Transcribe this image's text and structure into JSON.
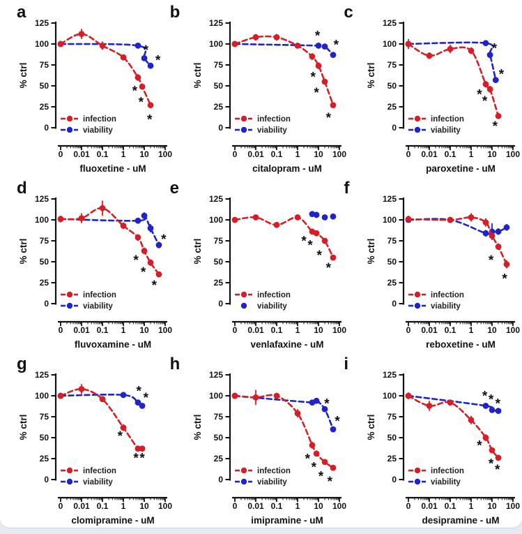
{
  "chart_data": {
    "type": "line",
    "description_layout": "3x3 grid of dose-response panels",
    "shared": {
      "ylabel": "% ctrl",
      "yticks": [
        0,
        25,
        50,
        75,
        100,
        125
      ],
      "ylim": [
        0,
        125
      ],
      "xticks": [
        "0",
        "0.01",
        "0.1",
        "1",
        "10",
        "100"
      ],
      "xscale": "log-with-zero",
      "legend": [
        "infection",
        "viability"
      ],
      "sig_marker": "*",
      "colors": {
        "infection": "#d51f26",
        "viability": "#1f24c8",
        "axis": "#111111",
        "significance": "#111111"
      }
    },
    "panels": [
      {
        "letter": "a",
        "xlabel": "fluoxetine - uM",
        "series": [
          {
            "name": "viability",
            "line": true,
            "points": [
              [
                0,
                100,
                2
              ],
              [
                5,
                98,
                2
              ],
              [
                10,
                83,
                3
              ],
              [
                20,
                74,
                3
              ]
            ],
            "sig": [
              [
                12,
                93
              ],
              [
                45,
                81
              ]
            ]
          },
          {
            "name": "infection",
            "line": true,
            "points": [
              [
                0,
                100,
                3
              ],
              [
                0.01,
                112,
                6
              ],
              [
                0.1,
                98,
                5
              ],
              [
                1,
                84,
                3
              ],
              [
                5,
                60,
                4
              ],
              [
                8,
                49,
                3
              ],
              [
                20,
                27,
                3
              ]
            ],
            "sig": [
              [
                3.5,
                44
              ],
              [
                7,
                31
              ],
              [
                18,
                10
              ]
            ]
          }
        ]
      },
      {
        "letter": "b",
        "xlabel": "citalopram - uM",
        "series": [
          {
            "name": "viability",
            "line": true,
            "points": [
              [
                0,
                100,
                2
              ],
              [
                10,
                98,
                2
              ],
              [
                20,
                97,
                2
              ],
              [
                50,
                87,
                3
              ]
            ],
            "sig": [
              [
                9,
                110
              ],
              [
                70,
                99
              ]
            ]
          },
          {
            "name": "infection",
            "line": true,
            "points": [
              [
                0,
                100,
                2
              ],
              [
                0.01,
                108,
                4
              ],
              [
                0.1,
                108,
                4
              ],
              [
                1,
                98,
                3
              ],
              [
                5,
                85,
                4
              ],
              [
                10,
                74,
                4
              ],
              [
                20,
                55,
                3
              ],
              [
                50,
                27,
                3
              ]
            ],
            "sig": [
              [
                5.5,
                61
              ],
              [
                8,
                42
              ],
              [
                30,
                12
              ]
            ]
          }
        ]
      },
      {
        "letter": "c",
        "xlabel": "paroxetine - uM",
        "series": [
          {
            "name": "viability",
            "line": true,
            "points": [
              [
                0,
                100,
                2
              ],
              [
                5,
                101,
                2
              ],
              [
                8,
                87,
                4
              ],
              [
                15,
                57,
                3
              ]
            ],
            "sig": [
              [
                13,
                95
              ],
              [
                28,
                64
              ]
            ]
          },
          {
            "name": "infection",
            "line": true,
            "points": [
              [
                0,
                100,
                6
              ],
              [
                0.01,
                86,
                4
              ],
              [
                0.1,
                94,
                5
              ],
              [
                1,
                92,
                4
              ],
              [
                5,
                52,
                4
              ],
              [
                8,
                46,
                4
              ],
              [
                20,
                14,
                2
              ]
            ],
            "sig": [
              [
                2.5,
                40
              ],
              [
                4.5,
                32
              ],
              [
                14,
                2
              ]
            ]
          }
        ]
      },
      {
        "letter": "d",
        "xlabel": "fluvoxamine - uM",
        "series": [
          {
            "name": "viability",
            "line": true,
            "points": [
              [
                0,
                101,
                2
              ],
              [
                5,
                99,
                3
              ],
              [
                10,
                105,
                4
              ],
              [
                20,
                90,
                5
              ],
              [
                50,
                70,
                4
              ]
            ],
            "sig": [
              [
                85,
                77
              ]
            ]
          },
          {
            "name": "infection",
            "line": true,
            "points": [
              [
                0,
                101,
                4
              ],
              [
                0.01,
                102,
                6
              ],
              [
                0.1,
                114,
                9
              ],
              [
                1,
                93,
                4
              ],
              [
                5,
                79,
                4
              ],
              [
                10,
                63,
                4
              ],
              [
                20,
                49,
                4
              ],
              [
                50,
                35,
                3
              ]
            ],
            "sig": [
              [
                4,
                52
              ],
              [
                9,
                38
              ],
              [
                30,
                22
              ]
            ]
          }
        ]
      },
      {
        "letter": "e",
        "xlabel": "venlafaxine - uM",
        "series": [
          {
            "name": "viability",
            "line": false,
            "points": [
              [
                5,
                107,
                0
              ],
              [
                8,
                106,
                0
              ],
              [
                20,
                103,
                0
              ],
              [
                50,
                104,
                0
              ]
            ],
            "sig": []
          },
          {
            "name": "infection",
            "line": true,
            "points": [
              [
                0,
                100,
                2
              ],
              [
                0.01,
                103,
                2
              ],
              [
                0.1,
                94,
                3
              ],
              [
                1,
                103,
                2
              ],
              [
                5,
                86,
                2
              ],
              [
                8,
                84,
                2
              ],
              [
                20,
                75,
                3
              ],
              [
                50,
                55,
                3
              ]
            ],
            "sig": [
              [
                2,
                75
              ],
              [
                4,
                70
              ],
              [
                11,
                58
              ],
              [
                30,
                43
              ]
            ]
          }
        ]
      },
      {
        "letter": "f",
        "xlabel": "reboxetine - uM",
        "series": [
          {
            "name": "viability",
            "line": true,
            "points": [
              [
                0,
                100,
                2
              ],
              [
                0.1,
                100,
                2
              ],
              [
                5,
                84,
                4
              ],
              [
                10,
                86,
                10
              ],
              [
                20,
                86,
                4
              ],
              [
                50,
                91,
                4
              ]
            ],
            "sig": []
          },
          {
            "name": "infection",
            "line": true,
            "points": [
              [
                0,
                101,
                4
              ],
              [
                0.1,
                100,
                3
              ],
              [
                1,
                103,
                5
              ],
              [
                5,
                97,
                5
              ],
              [
                10,
                81,
                4
              ],
              [
                20,
                68,
                4
              ],
              [
                50,
                47,
                5
              ]
            ],
            "sig": [
              [
                9,
                52
              ],
              [
                40,
                30
              ]
            ]
          }
        ]
      },
      {
        "letter": "g",
        "xlabel": "clomipramine - uM",
        "series": [
          {
            "name": "viability",
            "line": true,
            "points": [
              [
                0,
                100,
                2
              ],
              [
                1,
                101,
                2
              ],
              [
                5,
                92,
                2
              ],
              [
                8,
                88,
                2
              ]
            ],
            "sig": [
              [
                5.5,
                106
              ],
              [
                12,
                98
              ]
            ]
          },
          {
            "name": "infection",
            "line": true,
            "points": [
              [
                0,
                100,
                2
              ],
              [
                0.01,
                108,
                6
              ],
              [
                0.1,
                96,
                3
              ],
              [
                1,
                62,
                4
              ],
              [
                5,
                37,
                2
              ],
              [
                8,
                37,
                2
              ]
            ],
            "sig": [
              [
                0.7,
                52
              ],
              [
                4,
                26
              ],
              [
                8,
                26
              ]
            ]
          }
        ]
      },
      {
        "letter": "h",
        "xlabel": "imipramine - uM",
        "series": [
          {
            "name": "viability",
            "line": true,
            "points": [
              [
                0,
                100,
                3
              ],
              [
                5,
                92,
                2
              ],
              [
                8,
                94,
                2
              ],
              [
                20,
                84,
                3
              ],
              [
                50,
                60,
                3
              ]
            ],
            "sig": [
              [
                25,
                91
              ],
              [
                80,
                70
              ]
            ]
          },
          {
            "name": "infection",
            "line": true,
            "points": [
              [
                0,
                100,
                2
              ],
              [
                0.01,
                98,
                9
              ],
              [
                0.1,
                100,
                3
              ],
              [
                1,
                79,
                5
              ],
              [
                5,
                41,
                4
              ],
              [
                8,
                31,
                3
              ],
              [
                20,
                21,
                2
              ],
              [
                50,
                14,
                2
              ]
            ],
            "sig": [
              [
                3,
                25
              ],
              [
                6,
                15
              ],
              [
                13,
                4
              ],
              [
                35,
                -2
              ]
            ]
          }
        ]
      },
      {
        "letter": "i",
        "xlabel": "desipramine - uM",
        "series": [
          {
            "name": "viability",
            "line": true,
            "points": [
              [
                0,
                100,
                2
              ],
              [
                5,
                88,
                3
              ],
              [
                10,
                83,
                2
              ],
              [
                20,
                82,
                2
              ]
            ],
            "sig": [
              [
                4.5,
                100
              ],
              [
                9,
                96
              ],
              [
                19,
                91
              ]
            ]
          },
          {
            "name": "infection",
            "line": true,
            "points": [
              [
                0,
                100,
                4
              ],
              [
                0.01,
                88,
                6
              ],
              [
                0.1,
                92,
                3
              ],
              [
                1,
                71,
                5
              ],
              [
                5,
                50,
                4
              ],
              [
                10,
                35,
                3
              ],
              [
                20,
                26,
                3
              ]
            ],
            "sig": [
              [
                2.5,
                41
              ],
              [
                9,
                19
              ],
              [
                18,
                12
              ]
            ]
          }
        ]
      }
    ]
  }
}
